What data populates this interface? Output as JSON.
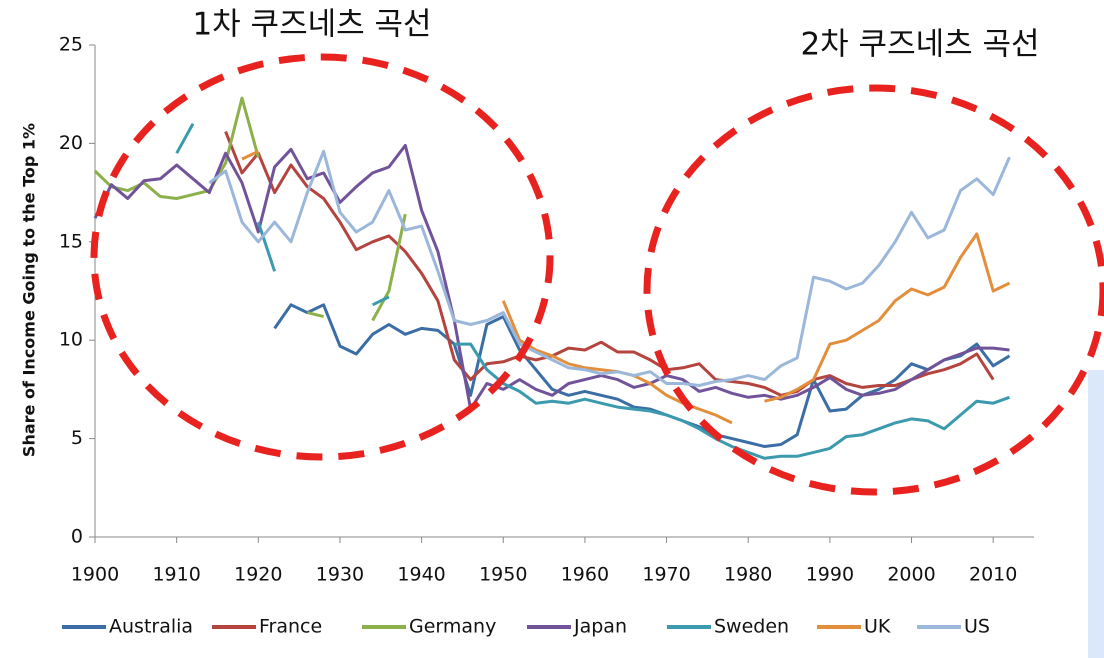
{
  "chart_data": {
    "type": "line",
    "y_label": "Share of Income Going to the Top 1%",
    "annotations": [
      "1차 쿠즈네츠 곡선",
      "2차 쿠즈네츠 곡선"
    ],
    "x": [
      1900,
      1902,
      1904,
      1906,
      1908,
      1910,
      1912,
      1914,
      1916,
      1918,
      1920,
      1922,
      1924,
      1926,
      1928,
      1930,
      1932,
      1934,
      1936,
      1938,
      1940,
      1942,
      1944,
      1946,
      1948,
      1950,
      1952,
      1954,
      1956,
      1958,
      1960,
      1962,
      1964,
      1966,
      1968,
      1970,
      1972,
      1974,
      1976,
      1978,
      1980,
      1982,
      1984,
      1986,
      1988,
      1990,
      1992,
      1994,
      1996,
      1998,
      2000,
      2002,
      2004,
      2006,
      2008,
      2010,
      2012
    ],
    "xlim": [
      1900,
      2015
    ],
    "xticks": [
      1900,
      1910,
      1920,
      1930,
      1940,
      1950,
      1960,
      1970,
      1980,
      1990,
      2000,
      2010
    ],
    "ylim": [
      0,
      25
    ],
    "yticks": [
      0,
      5,
      10,
      15,
      20,
      25
    ],
    "series": [
      {
        "name": "Australia",
        "color": "#3a6ea5",
        "values": [
          null,
          null,
          null,
          null,
          null,
          null,
          null,
          null,
          null,
          null,
          null,
          10.6,
          11.8,
          11.4,
          11.8,
          9.7,
          9.3,
          10.3,
          10.8,
          10.3,
          10.6,
          10.5,
          9.8,
          7.2,
          10.8,
          11.2,
          9.5,
          8.5,
          7.5,
          7.2,
          7.4,
          7.2,
          7.0,
          6.6,
          6.5,
          6.2,
          5.9,
          5.6,
          5.2,
          5.0,
          4.8,
          4.6,
          4.7,
          5.2,
          8.0,
          6.4,
          6.5,
          7.2,
          7.5,
          8.0,
          8.8,
          8.5,
          9.0,
          9.2,
          9.8,
          8.7,
          9.2
        ]
      },
      {
        "name": "France",
        "color": "#b5443f",
        "values": [
          null,
          null,
          null,
          null,
          null,
          null,
          null,
          null,
          20.6,
          18.5,
          19.5,
          17.5,
          18.9,
          17.8,
          17.2,
          16.0,
          14.6,
          15.0,
          15.3,
          14.5,
          13.4,
          12.0,
          9.0,
          8.0,
          8.8,
          8.9,
          9.2,
          9.0,
          9.2,
          9.6,
          9.5,
          9.9,
          9.4,
          9.4,
          9.0,
          8.5,
          8.6,
          8.8,
          8.0,
          7.9,
          7.8,
          7.6,
          7.2,
          7.4,
          8.0,
          8.2,
          7.8,
          7.6,
          7.7,
          7.7,
          8.0,
          8.3,
          8.5,
          8.8,
          9.3,
          8.0,
          null
        ]
      },
      {
        "name": "Germany",
        "color": "#8cb04a",
        "values": [
          18.6,
          17.8,
          17.6,
          18.0,
          17.3,
          17.2,
          17.4,
          17.6,
          19.0,
          22.3,
          19.3,
          null,
          null,
          11.4,
          11.2,
          null,
          null,
          11.0,
          12.5,
          16.4,
          null,
          null,
          null,
          null,
          null,
          null,
          null,
          null,
          null,
          null,
          null,
          null,
          null,
          null,
          null,
          null,
          null,
          null,
          null,
          null,
          null,
          null,
          null,
          null,
          null,
          null,
          null,
          null,
          null,
          null,
          null,
          null,
          null,
          null,
          null,
          null,
          null
        ]
      },
      {
        "name": "Japan",
        "color": "#71539a",
        "values": [
          16.2,
          17.9,
          17.2,
          18.1,
          18.2,
          18.9,
          18.2,
          17.5,
          19.5,
          18.0,
          15.5,
          18.8,
          19.7,
          18.2,
          18.5,
          17.0,
          17.8,
          18.5,
          18.8,
          19.9,
          16.6,
          14.5,
          11.0,
          6.5,
          7.8,
          7.5,
          8.0,
          7.5,
          7.2,
          7.8,
          8.0,
          8.2,
          8.0,
          7.6,
          7.8,
          8.2,
          8.0,
          7.4,
          7.6,
          7.3,
          7.1,
          7.2,
          7.0,
          7.2,
          7.6,
          8.1,
          7.5,
          7.2,
          7.3,
          7.5,
          8.0,
          8.5,
          9.0,
          9.3,
          9.6,
          9.6,
          9.5
        ]
      },
      {
        "name": "Sweden",
        "color": "#3b9aae",
        "values": [
          null,
          null,
          null,
          null,
          null,
          19.5,
          21.0,
          null,
          null,
          null,
          16.0,
          13.5,
          null,
          null,
          null,
          null,
          null,
          11.8,
          12.2,
          null,
          null,
          null,
          9.8,
          9.8,
          8.5,
          7.8,
          7.4,
          6.8,
          6.9,
          6.8,
          7.0,
          6.8,
          6.6,
          6.5,
          6.4,
          6.2,
          5.9,
          5.5,
          5.0,
          4.6,
          4.3,
          4.0,
          4.1,
          4.1,
          4.3,
          4.5,
          5.1,
          5.2,
          5.5,
          5.8,
          6.0,
          5.9,
          5.5,
          6.2,
          6.9,
          6.8,
          7.1
        ]
      },
      {
        "name": "UK",
        "color": "#e38e3b",
        "values": [
          null,
          null,
          null,
          null,
          null,
          null,
          null,
          null,
          null,
          19.2,
          19.6,
          null,
          null,
          null,
          null,
          null,
          null,
          null,
          null,
          null,
          null,
          null,
          null,
          null,
          null,
          12.0,
          10.0,
          9.5,
          9.2,
          8.8,
          8.6,
          8.5,
          8.4,
          8.2,
          7.8,
          7.2,
          6.8,
          6.5,
          6.2,
          5.8,
          null,
          6.9,
          7.1,
          7.5,
          8.0,
          9.8,
          10.0,
          10.5,
          11.0,
          12.0,
          12.6,
          12.3,
          12.7,
          14.2,
          15.4,
          12.5,
          12.9
        ]
      },
      {
        "name": "US",
        "color": "#9bb7da",
        "values": [
          null,
          null,
          null,
          null,
          null,
          null,
          null,
          18.0,
          18.6,
          16.0,
          15.0,
          16.0,
          15.0,
          17.5,
          19.6,
          16.5,
          15.5,
          16.0,
          17.6,
          15.6,
          15.8,
          13.5,
          11.0,
          10.8,
          11.0,
          11.4,
          9.8,
          9.4,
          9.0,
          8.6,
          8.5,
          8.3,
          8.4,
          8.2,
          8.4,
          7.8,
          7.8,
          7.7,
          7.9,
          8.0,
          8.2,
          8.0,
          8.7,
          9.1,
          13.2,
          13.0,
          12.6,
          12.9,
          13.8,
          15.0,
          16.5,
          15.2,
          15.6,
          17.6,
          18.2,
          17.4,
          19.3
        ]
      }
    ]
  }
}
